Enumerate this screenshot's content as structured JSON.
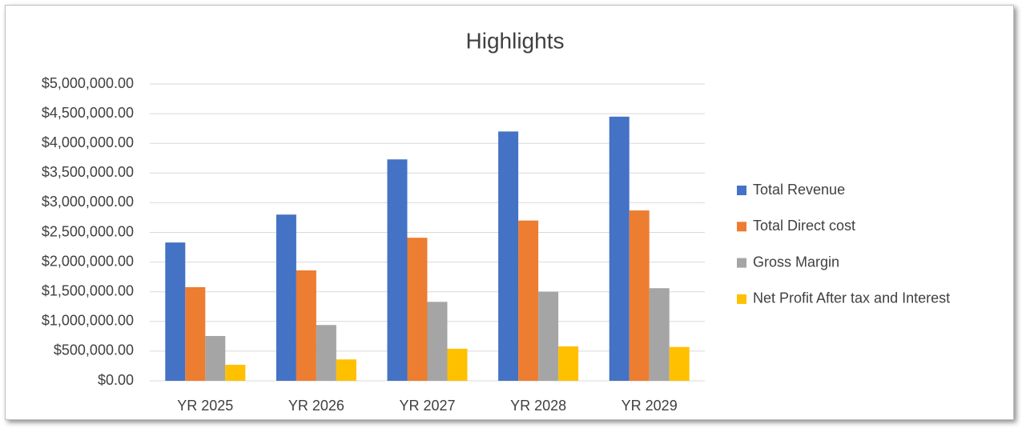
{
  "chart_data": {
    "type": "bar",
    "title": "Highlights",
    "categories": [
      "YR 2025",
      "YR 2026",
      "YR 2027",
      "YR 2028",
      "YR 2029"
    ],
    "series": [
      {
        "name": "Total Revenue",
        "color": "#4472c4",
        "values": [
          2330000,
          2800000,
          3730000,
          4200000,
          4450000
        ]
      },
      {
        "name": "Total Direct cost",
        "color": "#ed7d31",
        "values": [
          1577000,
          1860000,
          2410000,
          2700000,
          2870000
        ]
      },
      {
        "name": "Gross Margin",
        "color": "#a5a5a5",
        "values": [
          755000,
          940000,
          1330000,
          1500000,
          1560000
        ]
      },
      {
        "name": "Net Profit After tax and Interest",
        "color": "#ffc000",
        "values": [
          270000,
          360000,
          540000,
          580000,
          570000
        ]
      }
    ],
    "ylim": [
      0,
      5000000
    ],
    "yticks": [
      {
        "value": 0,
        "label": "$0.00"
      },
      {
        "value": 500000,
        "label": "$500,000.00"
      },
      {
        "value": 1000000,
        "label": "$1,000,000.00"
      },
      {
        "value": 1500000,
        "label": "$1,500,000.00"
      },
      {
        "value": 2000000,
        "label": "$2,000,000.00"
      },
      {
        "value": 2500000,
        "label": "$2,500,000.00"
      },
      {
        "value": 3000000,
        "label": "$3,000,000.00"
      },
      {
        "value": 3500000,
        "label": "$3,500,000.00"
      },
      {
        "value": 4000000,
        "label": "$4,000,000.00"
      },
      {
        "value": 4500000,
        "label": "$4,500,000.00"
      },
      {
        "value": 5000000,
        "label": "$5,000,000.00"
      }
    ],
    "grid": true,
    "legend": "right"
  }
}
